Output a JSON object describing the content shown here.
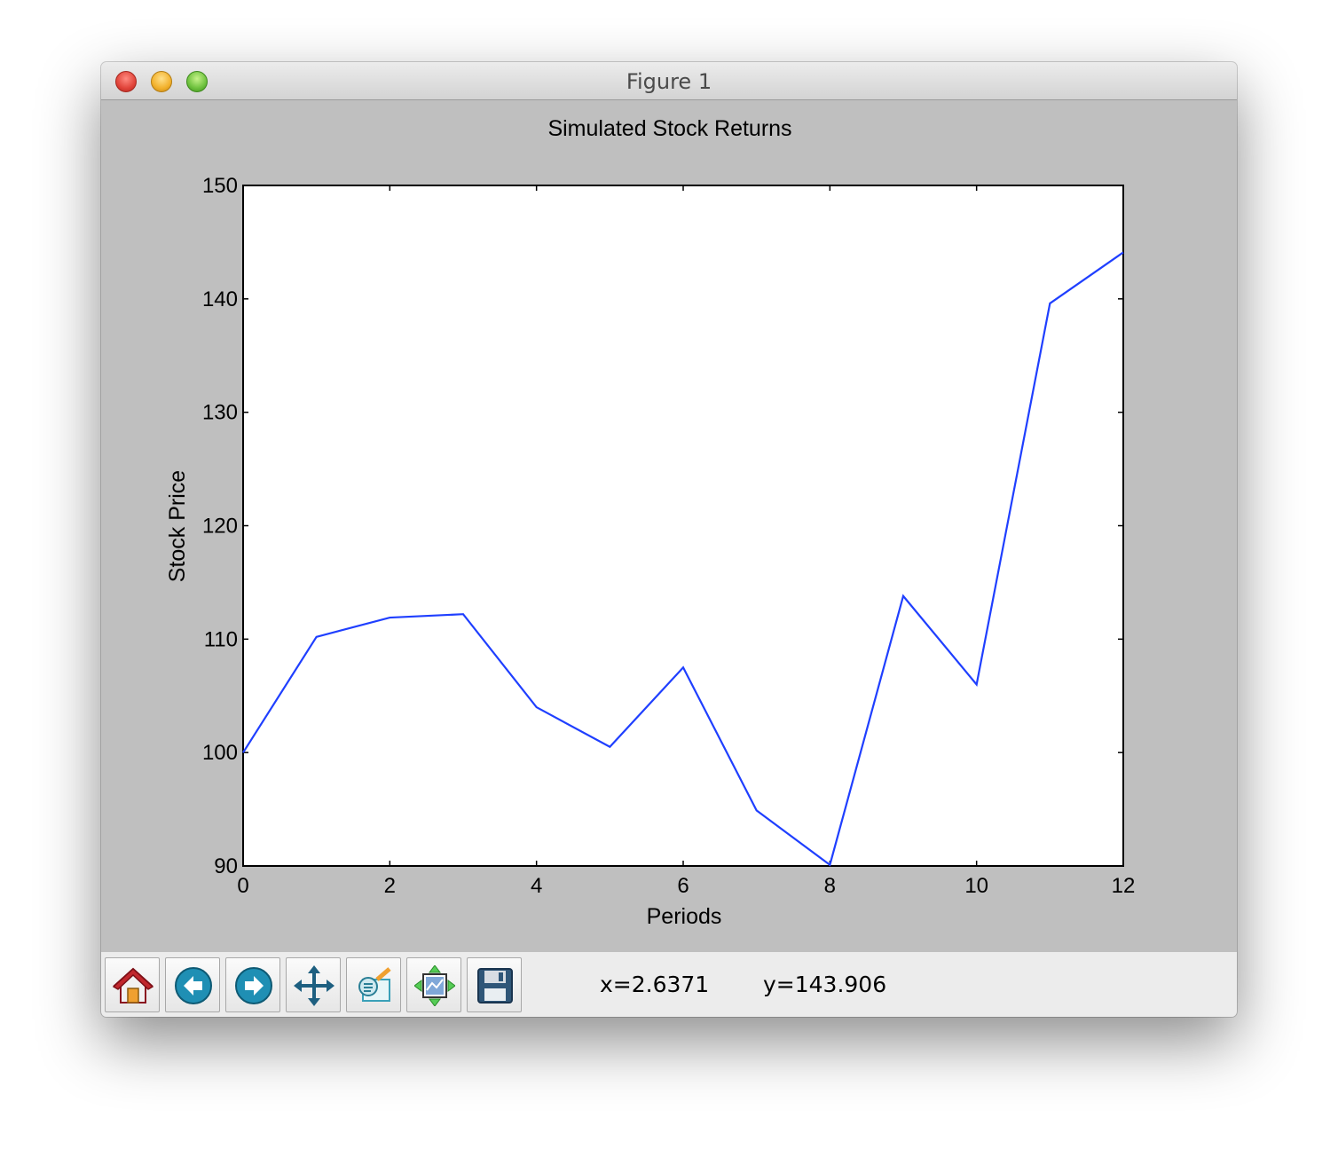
{
  "window": {
    "title": "Figure 1"
  },
  "toolbar": {
    "buttons": [
      {
        "name": "home",
        "icon": "home-icon"
      },
      {
        "name": "back",
        "icon": "back-arrow-icon"
      },
      {
        "name": "forward",
        "icon": "forward-arrow-icon"
      },
      {
        "name": "pan",
        "icon": "move-arrows-icon"
      },
      {
        "name": "zoom",
        "icon": "zoom-rect-icon"
      },
      {
        "name": "subplots",
        "icon": "subplots-icon"
      },
      {
        "name": "save",
        "icon": "floppy-disk-icon"
      }
    ],
    "x_readout": "x=2.6371",
    "y_readout": "y=143.906"
  },
  "chart_data": {
    "type": "line",
    "title": "Simulated Stock Returns",
    "xlabel": "Periods",
    "ylabel": "Stock Price",
    "xlim": [
      0,
      12
    ],
    "ylim": [
      90,
      150
    ],
    "xticks": [
      0,
      2,
      4,
      6,
      8,
      10,
      12
    ],
    "yticks": [
      90,
      100,
      110,
      120,
      130,
      140,
      150
    ],
    "grid": false,
    "series": [
      {
        "color": "#1f3fff",
        "x": [
          0,
          1,
          2,
          3,
          4,
          5,
          6,
          7,
          8,
          9,
          10,
          11,
          12
        ],
        "y": [
          100,
          110.2,
          111.9,
          112.2,
          104,
          100.5,
          107.5,
          94.9,
          90.1,
          113.8,
          106,
          139.6,
          144.1
        ]
      }
    ]
  }
}
